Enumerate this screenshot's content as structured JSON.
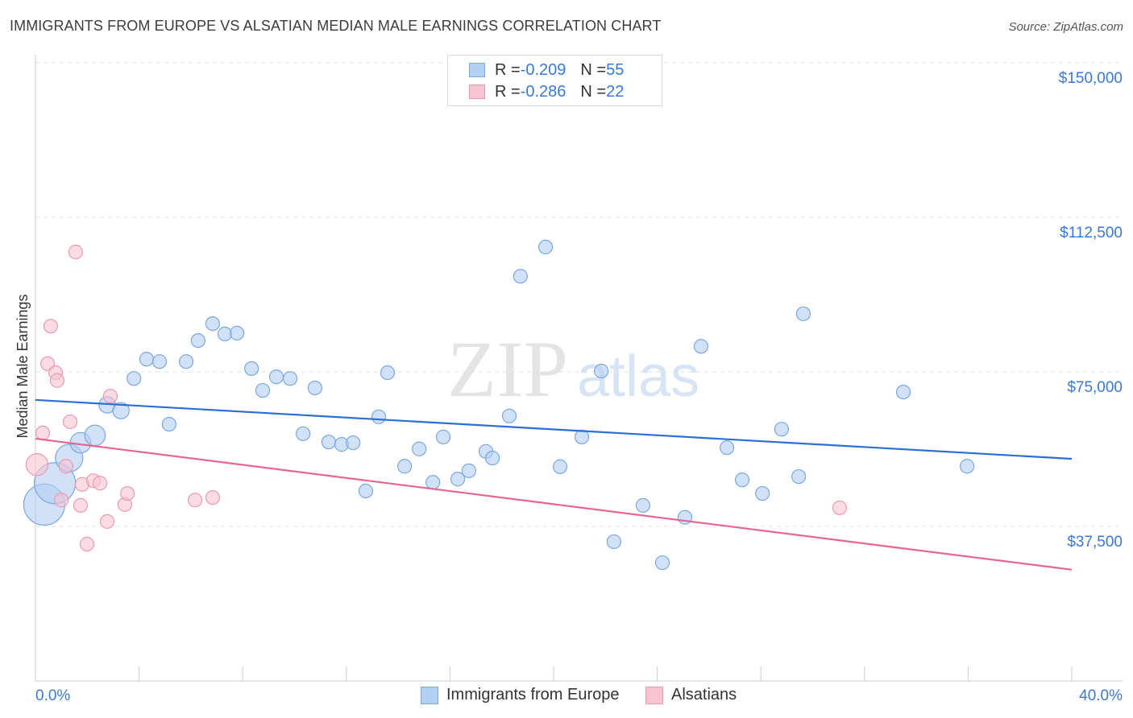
{
  "title": "IMMIGRANTS FROM EUROPE VS ALSATIAN MEDIAN MALE EARNINGS CORRELATION CHART",
  "source": "Source: ZipAtlas.com",
  "watermark": {
    "zip": "ZIP",
    "atlas": "atlas"
  },
  "legend": [
    {
      "r_label": "R = ",
      "r": "-0.209",
      "n_label": "N = ",
      "n": "55"
    },
    {
      "r_label": "R = ",
      "r": "-0.286",
      "n_label": "N = ",
      "n": "22"
    }
  ],
  "chart_data": {
    "type": "scatter",
    "title": "IMMIGRANTS FROM EUROPE VS ALSATIAN MEDIAN MALE EARNINGS CORRELATION CHART",
    "xlabel": "",
    "ylabel": "Median Male Earnings",
    "xlim": [
      0,
      40
    ],
    "ylim": [
      0,
      150000
    ],
    "x_tick_labels": [
      "0.0%",
      "40.0%"
    ],
    "y_ticks": [
      37500,
      75000,
      112500,
      150000
    ],
    "y_tick_labels": [
      "$37,500",
      "$75,000",
      "$112,500",
      "$150,000"
    ],
    "grid": true,
    "legend_position": "top-center",
    "series": [
      {
        "name": "Immigrants from Europe",
        "color": "#7ba7e0",
        "fill": "#b3cff3",
        "line_color": "#2a6fd6",
        "trend": [
          [
            0,
            68200
          ],
          [
            40,
            53900
          ]
        ],
        "points": [
          [
            0.34,
            42800,
            3
          ],
          [
            0.75,
            48000,
            3
          ],
          [
            1.3,
            54100,
            2
          ],
          [
            1.74,
            57800,
            1.5
          ],
          [
            2.3,
            59600,
            1.5
          ],
          [
            2.77,
            67000,
            1.2
          ],
          [
            3.3,
            65600,
            1.2
          ],
          [
            3.8,
            73400,
            1
          ],
          [
            4.29,
            78100,
            1
          ],
          [
            4.79,
            77500,
            1
          ],
          [
            5.16,
            62300,
            1
          ],
          [
            5.82,
            77500,
            1
          ],
          [
            6.28,
            82600,
            1
          ],
          [
            6.84,
            86700,
            1
          ],
          [
            7.31,
            84200,
            1
          ],
          [
            7.78,
            84400,
            1
          ],
          [
            8.34,
            75800,
            1
          ],
          [
            8.77,
            70500,
            1
          ],
          [
            9.3,
            73800,
            1
          ],
          [
            9.83,
            73400,
            1
          ],
          [
            10.33,
            60000,
            1
          ],
          [
            10.79,
            71100,
            1
          ],
          [
            11.32,
            58000,
            1
          ],
          [
            11.82,
            57400,
            1
          ],
          [
            12.26,
            57800,
            1
          ],
          [
            12.75,
            46100,
            1
          ],
          [
            13.25,
            64100,
            1
          ],
          [
            13.59,
            74800,
            1
          ],
          [
            14.25,
            52100,
            1
          ],
          [
            14.81,
            56300,
            1
          ],
          [
            15.34,
            48200,
            1
          ],
          [
            15.74,
            59200,
            1
          ],
          [
            16.3,
            49000,
            1
          ],
          [
            16.73,
            51000,
            1
          ],
          [
            17.39,
            55700,
            1
          ],
          [
            17.64,
            54100,
            1
          ],
          [
            18.29,
            64300,
            1
          ],
          [
            18.72,
            98200,
            1
          ],
          [
            19.69,
            105300,
            1
          ],
          [
            20.25,
            52000,
            1
          ],
          [
            21.09,
            59200,
            1
          ],
          [
            21.84,
            75200,
            1
          ],
          [
            22.33,
            33800,
            1
          ],
          [
            23.45,
            42600,
            1
          ],
          [
            24.2,
            28700,
            1
          ],
          [
            25.07,
            39700,
            1
          ],
          [
            25.69,
            81200,
            1
          ],
          [
            26.69,
            56600,
            1
          ],
          [
            27.28,
            48800,
            1
          ],
          [
            28.06,
            45500,
            1
          ],
          [
            28.8,
            61100,
            1
          ],
          [
            29.46,
            49600,
            1
          ],
          [
            29.64,
            89100,
            1
          ],
          [
            33.5,
            70100,
            1
          ],
          [
            35.96,
            52100,
            1
          ]
        ]
      },
      {
        "name": "Alsatians",
        "color": "#eb9ab2",
        "fill": "#f8c3d2",
        "line_color": "#e56690",
        "trend": [
          [
            0,
            58800
          ],
          [
            40,
            27000
          ]
        ],
        "points": [
          [
            0.06,
            52500,
            1.6
          ],
          [
            0.28,
            60200,
            1
          ],
          [
            0.47,
            77000,
            1
          ],
          [
            0.59,
            86100,
            1
          ],
          [
            0.78,
            74800,
            1
          ],
          [
            0.84,
            72900,
            1
          ],
          [
            1.0,
            43900,
            1
          ],
          [
            1.18,
            52100,
            1
          ],
          [
            1.34,
            62900,
            1
          ],
          [
            1.55,
            104100,
            1
          ],
          [
            1.74,
            42600,
            1
          ],
          [
            1.8,
            47700,
            1
          ],
          [
            1.99,
            33200,
            1
          ],
          [
            2.24,
            48600,
            1
          ],
          [
            2.49,
            48000,
            1
          ],
          [
            2.77,
            38700,
            1
          ],
          [
            2.89,
            69100,
            1
          ],
          [
            3.45,
            42800,
            1
          ],
          [
            3.55,
            45500,
            1
          ],
          [
            6.16,
            43900,
            1
          ],
          [
            6.84,
            44500,
            1
          ],
          [
            31.04,
            42000,
            1
          ]
        ]
      }
    ]
  }
}
